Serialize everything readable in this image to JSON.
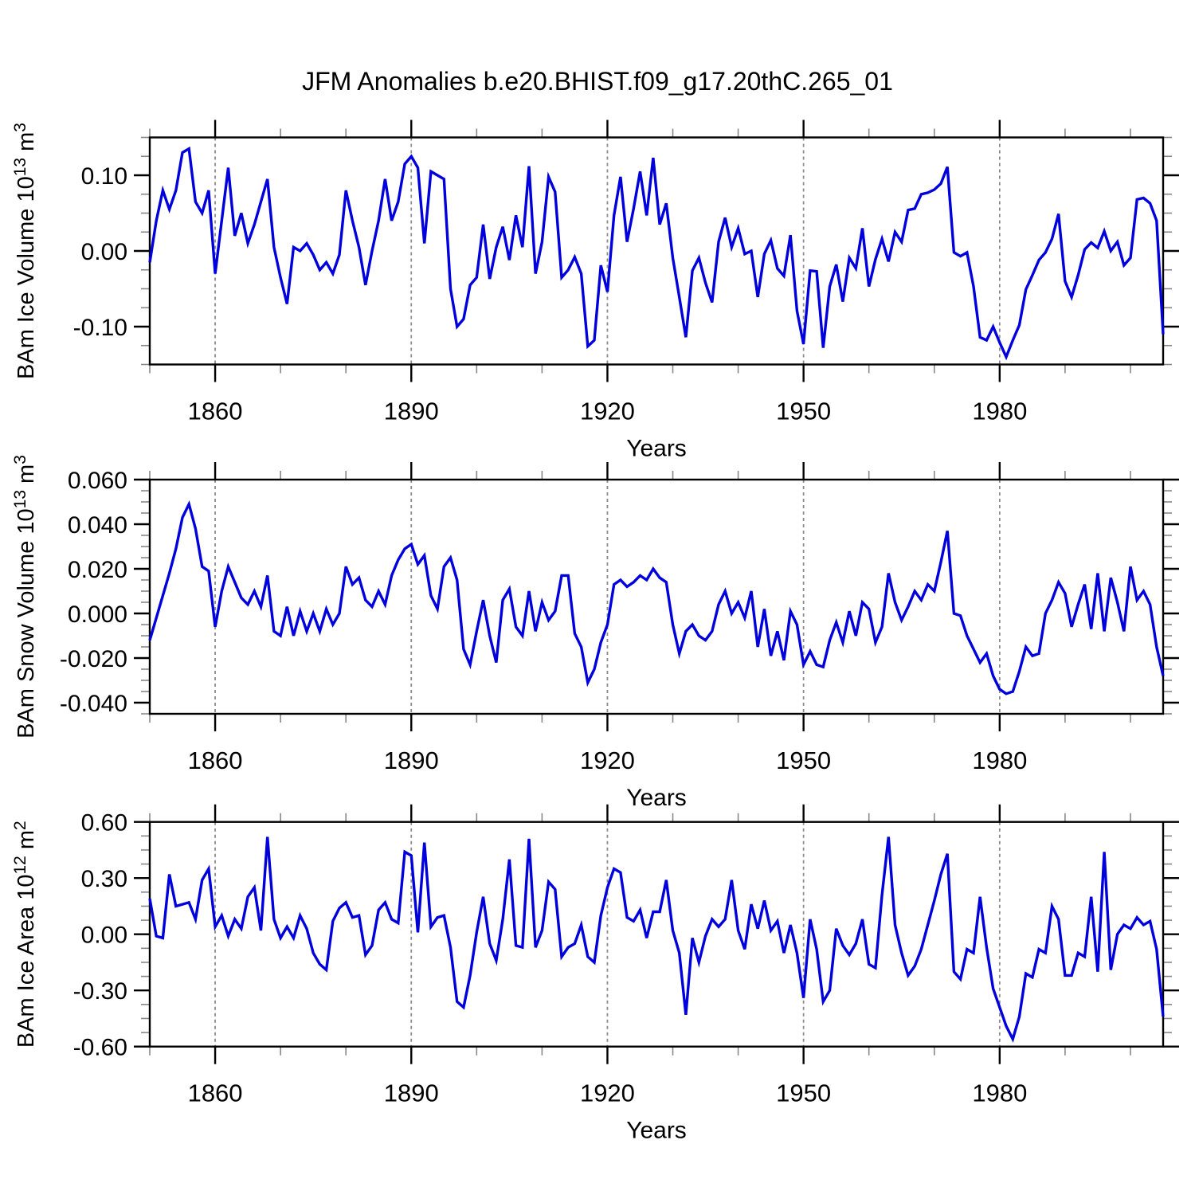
{
  "title": "JFM Anomalies b.e20.BHIST.f09_g17.20thC.265_01",
  "style": {
    "line_color": "#0000dd",
    "grid_color": "#8c8c8c",
    "frame_color": "#000000",
    "major_tick_color": "#000000",
    "minor_tick_color": "#888888",
    "background": "#ffffff"
  },
  "x_axis": {
    "label": "Years",
    "start_year": 1850,
    "end_year": 2005,
    "major_tick_years": [
      1860,
      1890,
      1920,
      1950,
      1980
    ],
    "tick_labels": [
      "1860",
      "1890",
      "1920",
      "1950",
      "1980"
    ],
    "minor_tick_step": 10,
    "gridlines": "dashed-vertical-at-major-ticks"
  },
  "chart_data": [
    {
      "type": "line",
      "id": "ice-volume",
      "ylabel_text": "BAm Ice Volume 10^13 m^3",
      "ylabel_parts": [
        {
          "t": "BAm Ice Volume 10",
          "s": 0
        },
        {
          "t": "13",
          "s": 1
        },
        {
          "t": " m",
          "s": 0
        },
        {
          "t": "3",
          "s": 1
        }
      ],
      "ylim": [
        -0.15,
        0.15
      ],
      "y_minor_step": 0.025,
      "y_major_ticks": [
        {
          "v": 0.1,
          "label": "0.10"
        },
        {
          "v": 0.0,
          "label": "0.00"
        },
        {
          "v": -0.1,
          "label": "-0.10"
        }
      ],
      "x0": 1850,
      "values": [
        -0.015,
        0.04,
        0.08,
        0.055,
        0.08,
        0.13,
        0.135,
        0.065,
        0.05,
        0.08,
        -0.03,
        0.04,
        0.11,
        0.02,
        0.05,
        0.01,
        0.035,
        0.065,
        0.095,
        0.005,
        -0.035,
        -0.07,
        0.005,
        0,
        0.01,
        -0.005,
        -0.025,
        -0.015,
        -0.03,
        -0.005,
        0.08,
        0.04,
        0.005,
        -0.045,
        0,
        0.04,
        0.095,
        0.04,
        0.065,
        0.115,
        0.125,
        0.11,
        0.01,
        0.105,
        0.1,
        0.095,
        -0.05,
        -0.1,
        -0.09,
        -0.045,
        -0.035,
        0.035,
        -0.037,
        0.005,
        0.032,
        -0.012,
        0.047,
        0.005,
        0.112,
        -0.03,
        0.012,
        0.098,
        0.078,
        -0.035,
        -0.025,
        -0.008,
        -0.03,
        -0.126,
        -0.118,
        -0.019,
        -0.054,
        0.047,
        0.098,
        0.012,
        0.056,
        0.105,
        0.047,
        0.123,
        0.035,
        0.063,
        -0.009,
        -0.061,
        -0.114,
        -0.026,
        -0.009,
        -0.042,
        -0.068,
        0.012,
        0.044,
        0.005,
        0.03,
        -0.004,
        0,
        -0.061,
        -0.004,
        0.014,
        -0.023,
        -0.033,
        0.021,
        -0.079,
        -0.123,
        -0.026,
        -0.027,
        -0.128,
        -0.047,
        -0.018,
        -0.067,
        -0.009,
        -0.023,
        0.03,
        -0.047,
        -0.011,
        0.016,
        -0.014,
        0.025,
        0.012,
        0.054,
        0.056,
        0.075,
        0.077,
        0.081,
        0.089,
        0.111,
        -0.002,
        -0.007,
        -0.002,
        -0.047,
        -0.114,
        -0.118,
        -0.1,
        -0.121,
        -0.14,
        -0.118,
        -0.098,
        -0.051,
        -0.032,
        -0.012,
        -0.002,
        0.016,
        0.049,
        -0.04,
        -0.061,
        -0.032,
        0.002,
        0.011,
        0.004,
        0.026,
        0,
        0.012,
        -0.019,
        -0.009,
        0.068,
        0.07,
        0.063,
        0.04,
        -0.11
      ]
    },
    {
      "type": "line",
      "id": "snow-volume",
      "ylabel_text": "BAm Snow Volume 10^13 m^3",
      "ylabel_parts": [
        {
          "t": "BAm Snow Volume 10",
          "s": 0
        },
        {
          "t": "13",
          "s": 1
        },
        {
          "t": " m",
          "s": 0
        },
        {
          "t": "3",
          "s": 1
        }
      ],
      "ylim": [
        -0.045,
        0.06
      ],
      "y_minor_step": 0.005,
      "y_major_ticks": [
        {
          "v": 0.06,
          "label": "0.060"
        },
        {
          "v": 0.04,
          "label": "0.040"
        },
        {
          "v": 0.02,
          "label": "0.020"
        },
        {
          "v": 0.0,
          "label": "0.000"
        },
        {
          "v": -0.02,
          "label": "-0.020"
        },
        {
          "v": -0.04,
          "label": "-0.040"
        }
      ],
      "x0": 1850,
      "values": [
        -0.012,
        -0.002,
        0.008,
        0.018,
        0.029,
        0.043,
        0.049,
        0.038,
        0.021,
        0.019,
        -0.006,
        0.01,
        0.021,
        0.014,
        0.007,
        0.004,
        0.01,
        0.003,
        0.017,
        -0.008,
        -0.01,
        0.003,
        -0.01,
        0.001,
        -0.008,
        0,
        -0.008,
        0.002,
        -0.005,
        0,
        0.021,
        0.013,
        0.016,
        0.006,
        0.003,
        0.01,
        0.004,
        0.017,
        0.024,
        0.029,
        0.031,
        0.022,
        0.026,
        0.008,
        0.002,
        0.021,
        0.025,
        0.015,
        -0.016,
        -0.023,
        -0.008,
        0.006,
        -0.01,
        -0.022,
        0.006,
        0.011,
        -0.006,
        -0.01,
        0.01,
        -0.008,
        0.005,
        -0.003,
        0.001,
        0.017,
        0.017,
        -0.009,
        -0.015,
        -0.031,
        -0.025,
        -0.013,
        -0.005,
        0.013,
        0.015,
        0.012,
        0.014,
        0.017,
        0.015,
        0.02,
        0.016,
        0.014,
        -0.005,
        -0.018,
        -0.008,
        -0.005,
        -0.01,
        -0.012,
        -0.008,
        0.004,
        0.01,
        0,
        0.005,
        -0.002,
        0.01,
        -0.015,
        0.002,
        -0.019,
        -0.008,
        -0.021,
        0.001,
        -0.005,
        -0.023,
        -0.017,
        -0.023,
        -0.024,
        -0.012,
        -0.004,
        -0.013,
        0.001,
        -0.01,
        0.005,
        0.002,
        -0.013,
        -0.006,
        0.018,
        0.005,
        -0.003,
        0.003,
        0.01,
        0.006,
        0.013,
        0.01,
        0.023,
        0.037,
        0,
        -0.001,
        -0.01,
        -0.016,
        -0.022,
        -0.018,
        -0.028,
        -0.034,
        -0.036,
        -0.035,
        -0.026,
        -0.015,
        -0.019,
        -0.018,
        0,
        0.006,
        0.014,
        0.009,
        -0.006,
        0.004,
        0.013,
        -0.007,
        0.018,
        -0.008,
        0.016,
        0.005,
        -0.008,
        0.021,
        0.006,
        0.01,
        0.004,
        -0.015,
        -0.028
      ]
    },
    {
      "type": "line",
      "id": "ice-area",
      "ylabel_text": "BAm Ice Area 10^12 m^2",
      "ylabel_parts": [
        {
          "t": "BAm Ice Area 10",
          "s": 0
        },
        {
          "t": "12",
          "s": 1
        },
        {
          "t": " m",
          "s": 0
        },
        {
          "t": "2",
          "s": 1
        }
      ],
      "ylim": [
        -0.6,
        0.6
      ],
      "y_minor_step": 0.075,
      "y_major_ticks": [
        {
          "v": 0.6,
          "label": "0.60"
        },
        {
          "v": 0.3,
          "label": "0.30"
        },
        {
          "v": 0.0,
          "label": "0.00"
        },
        {
          "v": -0.3,
          "label": "-0.30"
        },
        {
          "v": -0.6,
          "label": "-0.60"
        }
      ],
      "x0": 1850,
      "values": [
        0.19,
        -0.01,
        -0.02,
        0.32,
        0.15,
        0.16,
        0.17,
        0.08,
        0.29,
        0.35,
        0.04,
        0.1,
        -0.01,
        0.08,
        0.03,
        0.2,
        0.25,
        0.02,
        0.52,
        0.08,
        -0.02,
        0.04,
        -0.02,
        0.1,
        0.03,
        -0.1,
        -0.16,
        -0.19,
        0.07,
        0.14,
        0.17,
        0.09,
        0.1,
        -0.11,
        -0.06,
        0.13,
        0.17,
        0.08,
        0.06,
        0.44,
        0.42,
        0.01,
        0.49,
        0.04,
        0.09,
        0.1,
        -0.07,
        -0.36,
        -0.39,
        -0.22,
        0.01,
        0.2,
        -0.05,
        -0.14,
        0.08,
        0.4,
        -0.06,
        -0.07,
        0.51,
        -0.07,
        0.02,
        0.28,
        0.24,
        -0.12,
        -0.07,
        -0.05,
        0.05,
        -0.12,
        -0.15,
        0.1,
        0.25,
        0.35,
        0.33,
        0.09,
        0.07,
        0.13,
        -0.02,
        0.12,
        0.12,
        0.29,
        0.02,
        -0.1,
        -0.43,
        -0.02,
        -0.15,
        -0.01,
        0.08,
        0.04,
        0.08,
        0.29,
        0.02,
        -0.08,
        0.16,
        0.03,
        0.18,
        0.02,
        0.07,
        -0.1,
        0.05,
        -0.1,
        -0.34,
        0.08,
        -0.08,
        -0.36,
        -0.3,
        0.03,
        -0.06,
        -0.11,
        -0.05,
        0.08,
        -0.16,
        -0.18,
        0.21,
        0.52,
        0.05,
        -0.1,
        -0.22,
        -0.17,
        -0.08,
        0.05,
        0.18,
        0.32,
        0.43,
        -0.2,
        -0.24,
        -0.08,
        -0.1,
        0.2,
        -0.07,
        -0.29,
        -0.39,
        -0.49,
        -0.56,
        -0.44,
        -0.21,
        -0.23,
        -0.08,
        -0.1,
        0.15,
        0.08,
        -0.22,
        -0.22,
        -0.1,
        -0.12,
        0.2,
        -0.2,
        0.44,
        -0.19,
        0,
        0.05,
        0.03,
        0.09,
        0.05,
        0.07,
        -0.08,
        -0.44
      ]
    }
  ]
}
